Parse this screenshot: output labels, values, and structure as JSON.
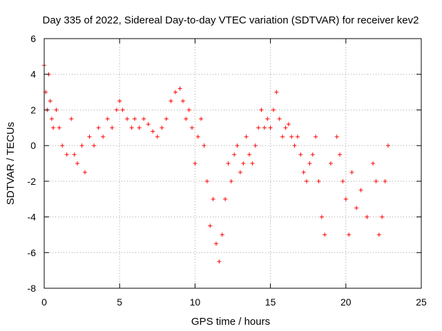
{
  "chart_data": {
    "type": "scatter",
    "title": "Day 335 of 2022, Sidereal Day-to-day VTEC variation (SDTVAR) for receiver kev2",
    "xlabel": "GPS time / hours",
    "ylabel": "SDTVAR / TECUs",
    "xlim": [
      0,
      25
    ],
    "ylim": [
      -8,
      6
    ],
    "xticks": [
      0,
      5,
      10,
      15,
      20,
      25
    ],
    "yticks": [
      -8,
      -6,
      -4,
      -2,
      0,
      2,
      4,
      6
    ],
    "grid": true,
    "marker": "plus",
    "colors": {
      "series": "#ff0000",
      "grid": "#a0a0a0",
      "axis": "#000000"
    },
    "series": [
      {
        "name": "SDTVAR",
        "x": [
          0.0,
          0.1,
          0.2,
          0.3,
          0.4,
          0.5,
          0.6,
          0.8,
          1.0,
          1.2,
          1.5,
          1.8,
          2.0,
          2.2,
          2.5,
          2.7,
          3.0,
          3.3,
          3.6,
          3.9,
          4.2,
          4.5,
          4.8,
          5.0,
          5.2,
          5.5,
          5.8,
          6.0,
          6.3,
          6.6,
          6.9,
          7.2,
          7.5,
          7.8,
          8.1,
          8.4,
          8.7,
          9.0,
          9.2,
          9.4,
          9.6,
          9.8,
          10.0,
          10.2,
          10.4,
          10.6,
          10.8,
          11.0,
          11.2,
          11.4,
          11.6,
          11.8,
          12.0,
          12.2,
          12.4,
          12.6,
          12.8,
          13.0,
          13.2,
          13.4,
          13.6,
          13.8,
          14.0,
          14.2,
          14.4,
          14.6,
          14.8,
          15.0,
          15.2,
          15.4,
          15.6,
          15.8,
          16.0,
          16.2,
          16.4,
          16.6,
          16.8,
          17.0,
          17.2,
          17.4,
          17.6,
          17.8,
          18.0,
          18.2,
          18.4,
          18.6,
          19.0,
          19.4,
          19.6,
          19.8,
          20.0,
          20.2,
          20.4,
          20.7,
          21.0,
          21.4,
          21.8,
          22.0,
          22.2,
          22.4,
          22.6,
          22.8
        ],
        "y": [
          4.5,
          3.0,
          2.0,
          4.0,
          2.5,
          1.5,
          1.0,
          2.0,
          1.0,
          0.0,
          -0.5,
          1.5,
          -0.5,
          -1.0,
          0.0,
          -1.5,
          0.5,
          0.0,
          1.0,
          0.5,
          1.5,
          1.0,
          2.0,
          2.5,
          2.0,
          1.5,
          1.0,
          1.5,
          1.0,
          1.5,
          1.2,
          0.8,
          0.5,
          1.0,
          1.5,
          2.5,
          3.0,
          3.2,
          2.5,
          1.5,
          2.0,
          1.0,
          -1.0,
          0.5,
          1.5,
          0.0,
          -2.0,
          -4.5,
          -3.0,
          -5.5,
          -6.5,
          -5.0,
          -3.0,
          -1.0,
          -2.0,
          -0.5,
          0.0,
          -1.5,
          -1.0,
          0.5,
          -0.5,
          -1.0,
          0.0,
          1.0,
          2.0,
          1.0,
          1.5,
          1.0,
          2.0,
          3.0,
          1.5,
          0.5,
          1.0,
          1.2,
          0.5,
          0.0,
          0.5,
          -0.5,
          -1.5,
          -2.0,
          -1.0,
          -0.5,
          0.5,
          -2.0,
          -4.0,
          -5.0,
          -1.0,
          0.5,
          -0.5,
          -2.0,
          -3.0,
          -5.0,
          -1.5,
          -3.5,
          -2.5,
          -4.0,
          -1.0,
          -2.0,
          -5.0,
          -4.0,
          -2.0,
          0.0
        ]
      }
    ]
  }
}
